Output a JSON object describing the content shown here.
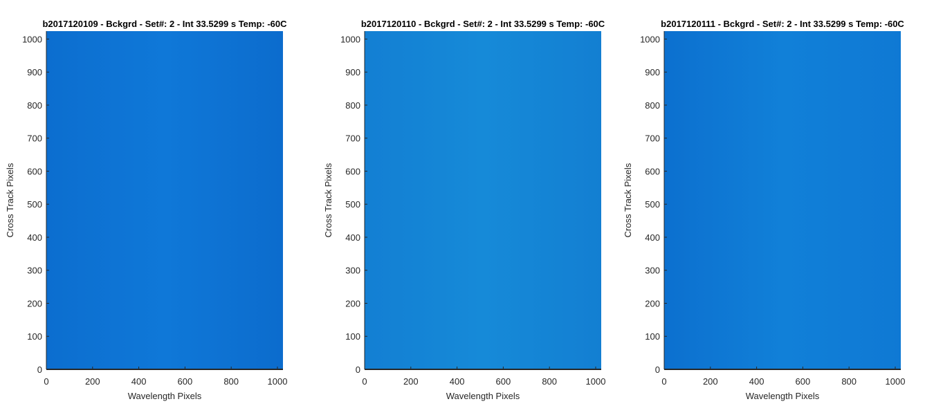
{
  "chart_data": [
    {
      "type": "heatmap",
      "title": "b2017120109 - Bckgrd - Set#: 2 - Int 33.5299 s Temp: -60C",
      "xlabel": "Wavelength Pixels",
      "ylabel": "Cross Track Pixels",
      "xlim": [
        0,
        1024
      ],
      "ylim": [
        0,
        1024
      ],
      "xticks": [
        "0",
        "200",
        "400",
        "600",
        "800",
        "1000"
      ],
      "yticks": [
        "0",
        "100",
        "200",
        "300",
        "400",
        "500",
        "600",
        "700",
        "800",
        "900",
        "1000"
      ],
      "fill_colors": [
        "#0c6ecf",
        "#0f78d8",
        "#0c6ccd"
      ]
    },
    {
      "type": "heatmap",
      "title": "b2017120110 - Bckgrd - Set#: 2 - Int 33.5299 s Temp: -60C",
      "xlabel": "Wavelength Pixels",
      "ylabel": "Cross Track Pixels",
      "xlim": [
        0,
        1024
      ],
      "ylim": [
        0,
        1024
      ],
      "xticks": [
        "0",
        "200",
        "400",
        "600",
        "800",
        "1000"
      ],
      "yticks": [
        "0",
        "100",
        "200",
        "300",
        "400",
        "500",
        "600",
        "700",
        "800",
        "900",
        "1000"
      ],
      "fill_colors": [
        "#137fd3",
        "#168ad8",
        "#137fd2"
      ]
    },
    {
      "type": "heatmap",
      "title": "b2017120111 - Bckgrd - Set#: 2 - Int 33.5299 s Temp: -60C",
      "xlabel": "Wavelength Pixels",
      "ylabel": "Cross Track Pixels",
      "xlim": [
        0,
        1024
      ],
      "ylim": [
        0,
        1024
      ],
      "xticks": [
        "0",
        "200",
        "400",
        "600",
        "800",
        "1000"
      ],
      "yticks": [
        "0",
        "100",
        "200",
        "300",
        "400",
        "500",
        "600",
        "700",
        "800",
        "900",
        "1000"
      ],
      "fill_colors": [
        "#0c70cf",
        "#1180d8",
        "#0f79d4"
      ]
    }
  ]
}
